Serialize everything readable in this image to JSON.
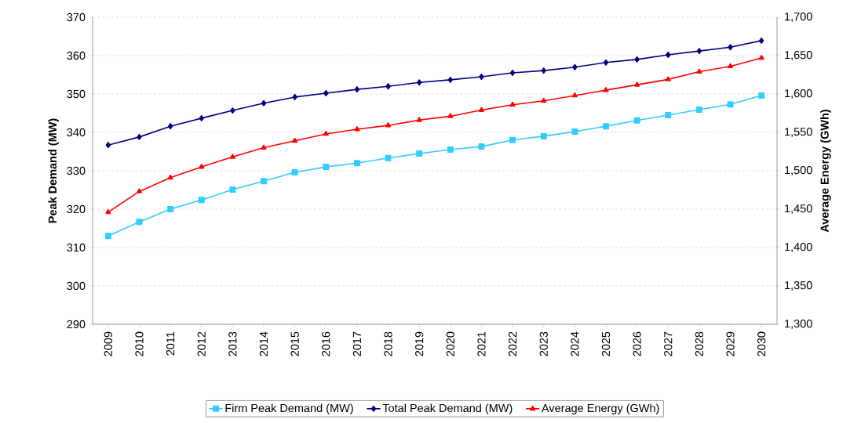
{
  "chart_data": {
    "type": "line",
    "ylabel": "Peak Demand (MW)",
    "y2label": "Average Energy (GWh)",
    "categories": [
      "2009",
      "2010",
      "2011",
      "2012",
      "2013",
      "2014",
      "2015",
      "2016",
      "2017",
      "2018",
      "2019",
      "2020",
      "2021",
      "2022",
      "2023",
      "2024",
      "2025",
      "2026",
      "2027",
      "2028",
      "2029",
      "2030"
    ],
    "series": [
      {
        "name": "Firm Peak Demand (MW)",
        "color": "#33ccff",
        "marker": "square",
        "values": [
          313,
          316.7,
          320,
          322.4,
          325.1,
          327.3,
          329.6,
          331,
          332,
          333.3,
          334.5,
          335.5,
          336.3,
          338,
          339,
          340.2,
          341.6,
          343.1,
          344.5,
          345.9,
          347.3,
          349.6
        ]
      },
      {
        "name": "Total Peak Demand (MW)",
        "color": "#000080",
        "marker": "diamond",
        "values": [
          336.7,
          338.8,
          341.6,
          343.7,
          345.7,
          347.6,
          349.2,
          350.2,
          351.2,
          352,
          353,
          353.7,
          354.5,
          355.5,
          356.1,
          357,
          358.2,
          359,
          360.2,
          361.2,
          362.2,
          363.9
        ]
      },
      {
        "name": "Average Energy (GWh)",
        "color": "#ff0000",
        "marker": "triangle",
        "axis": "y2",
        "values": [
          1446,
          1473,
          1491,
          1505,
          1518,
          1530,
          1539,
          1548,
          1554,
          1559,
          1566,
          1571,
          1579,
          1586,
          1591,
          1598,
          1605,
          1612,
          1619,
          1629,
          1636,
          1647
        ]
      }
    ],
    "ylim": [
      290,
      370
    ],
    "yticks": [
      290,
      300,
      310,
      320,
      330,
      340,
      350,
      360,
      370
    ],
    "y2lim": [
      1300,
      1700
    ],
    "y2ticks": [
      {
        "value": 1300,
        "label": "1,300"
      },
      {
        "value": 1350,
        "label": "1,350"
      },
      {
        "value": 1400,
        "label": "1,400"
      },
      {
        "value": 1450,
        "label": "1,450"
      },
      {
        "value": 1500,
        "label": "1,500"
      },
      {
        "value": 1550,
        "label": "1,550"
      },
      {
        "value": 1600,
        "label": "1,600"
      },
      {
        "value": 1650,
        "label": "1,650"
      },
      {
        "value": 1700,
        "label": "1,700"
      }
    ],
    "grid": "y",
    "legend": "bottom",
    "line_style": "solid"
  }
}
